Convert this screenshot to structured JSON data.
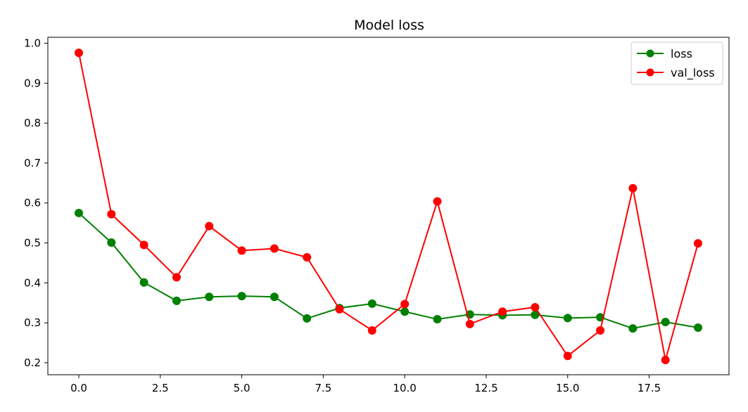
{
  "chart_data": {
    "type": "line",
    "title": "Model loss",
    "xlabel": "",
    "ylabel": "",
    "xlim": [
      -0.95,
      19.95
    ],
    "ylim": [
      0.17,
      1.015
    ],
    "xticks": [
      0.0,
      2.5,
      5.0,
      7.5,
      10.0,
      12.5,
      15.0,
      17.5
    ],
    "xtick_labels": [
      "0.0",
      "2.5",
      "5.0",
      "7.5",
      "10.0",
      "12.5",
      "15.0",
      "17.5"
    ],
    "yticks": [
      0.2,
      0.3,
      0.4,
      0.5,
      0.6,
      0.7,
      0.8,
      0.9,
      1.0
    ],
    "ytick_labels": [
      "0.2",
      "0.3",
      "0.4",
      "0.5",
      "0.6",
      "0.7",
      "0.8",
      "0.9",
      "1.0"
    ],
    "grid": false,
    "legend_position": "top-right",
    "x": [
      0,
      1,
      2,
      3,
      4,
      5,
      6,
      7,
      8,
      9,
      10,
      11,
      12,
      13,
      14,
      15,
      16,
      17,
      18,
      19
    ],
    "series": [
      {
        "name": "loss",
        "color": "#008000",
        "marker": "circle",
        "values": [
          0.575,
          0.501,
          0.401,
          0.355,
          0.365,
          0.367,
          0.365,
          0.311,
          0.337,
          0.348,
          0.328,
          0.309,
          0.321,
          0.319,
          0.32,
          0.312,
          0.314,
          0.286,
          0.302,
          0.288
        ]
      },
      {
        "name": "val_loss",
        "color": "#ff0000",
        "marker": "circle",
        "values": [
          0.976,
          0.572,
          0.495,
          0.414,
          0.542,
          0.481,
          0.486,
          0.464,
          0.334,
          0.281,
          0.347,
          0.604,
          0.297,
          0.328,
          0.339,
          0.217,
          0.281,
          0.637,
          0.207,
          0.499
        ]
      }
    ]
  }
}
